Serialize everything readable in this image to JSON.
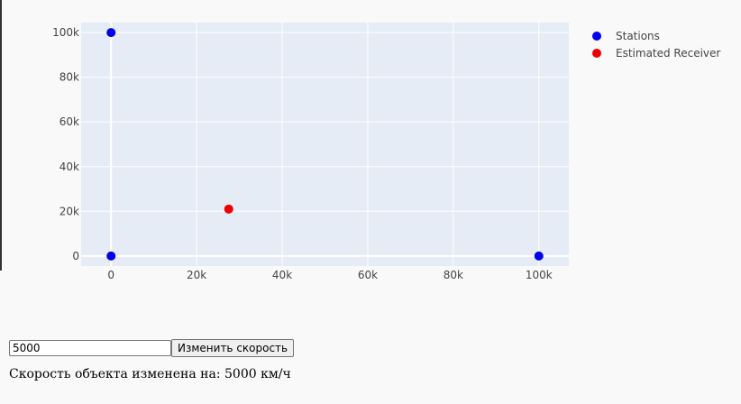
{
  "chart_data": {
    "type": "scatter",
    "title": "",
    "xlabel": "",
    "ylabel": "",
    "xlim": [
      -7000,
      107000
    ],
    "ylim": [
      -4500,
      104500
    ],
    "x_ticks": [
      0,
      20000,
      40000,
      60000,
      80000,
      100000
    ],
    "x_tick_labels": [
      "0",
      "20k",
      "40k",
      "60k",
      "80k",
      "100k"
    ],
    "y_ticks": [
      0,
      20000,
      40000,
      60000,
      80000,
      100000
    ],
    "y_tick_labels": [
      "0",
      "20k",
      "40k",
      "60k",
      "80k",
      "100k"
    ],
    "grid": true,
    "legend_position": "top-right outside",
    "series": [
      {
        "name": "Stations",
        "color": "#0000ee",
        "x": [
          0,
          0,
          100000
        ],
        "y": [
          100000,
          0,
          0
        ]
      },
      {
        "name": "Estimated Receiver",
        "color": "#ee0000",
        "x": [
          27500
        ],
        "y": [
          21000
        ]
      }
    ]
  },
  "controls": {
    "speed_value": "5000",
    "change_speed_label": "Изменить скорость"
  },
  "status": {
    "message": "Скорость объекта изменена на: 5000 км/ч"
  }
}
